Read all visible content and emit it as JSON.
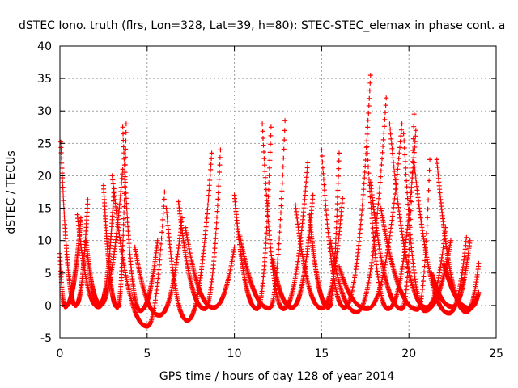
{
  "colors": {
    "series": "#ff0000",
    "axis": "#000000",
    "grid": "#a0a0a0",
    "background": "#ffffff"
  },
  "chart_data": {
    "type": "scatter",
    "marker": "plus",
    "title": "dSTEC Iono. truth (flrs, Lon=328, Lat=39, h=80): STEC-STEC_elemax in phase cont. a",
    "xlabel": "GPS time / hours of day 128 of year 2014",
    "ylabel": "dSTEC  / TECUs",
    "xlim": [
      0,
      25
    ],
    "ylim": [
      -5,
      40
    ],
    "xticks": [
      0,
      5,
      10,
      15,
      20,
      25
    ],
    "yticks": [
      -5,
      0,
      5,
      10,
      15,
      20,
      25,
      30,
      35,
      40
    ],
    "grid": true,
    "legend": "none",
    "series": [
      {
        "arcs": [
          {
            "start": 0.05,
            "min": 0.9,
            "end": 1.6,
            "peak_left": 25.2,
            "peak_right": 16.3,
            "floor": 0.0
          },
          {
            "start": 0.0,
            "min": 0.3,
            "end": 1.2,
            "peak_left": 8.0,
            "peak_right": 13.5,
            "floor": -0.2
          },
          {
            "start": 1.0,
            "min": 2.2,
            "end": 3.6,
            "peak_left": 14.0,
            "peak_right": 21.0,
            "floor": -0.2
          },
          {
            "start": 1.5,
            "min": 2.3,
            "end": 3.1,
            "peak_left": 10.0,
            "peak_right": 18.0,
            "floor": 0.3
          },
          {
            "start": 2.5,
            "min": 3.3,
            "end": 3.8,
            "peak_left": 18.5,
            "peak_right": 28.0,
            "floor": -0.3
          },
          {
            "start": 3.0,
            "min": 5.0,
            "end": 6.0,
            "peak_left": 20.0,
            "peak_right": 17.5,
            "floor": -3.2
          },
          {
            "start": 3.6,
            "min": 4.6,
            "end": 5.6,
            "peak_left": 27.5,
            "peak_right": 10.0,
            "floor": -0.8
          },
          {
            "start": 4.3,
            "min": 5.7,
            "end": 7.0,
            "peak_left": 9.0,
            "peak_right": 13.5,
            "floor": -1.5
          },
          {
            "start": 6.1,
            "min": 7.3,
            "end": 8.7,
            "peak_left": 15.0,
            "peak_right": 23.5,
            "floor": -2.3
          },
          {
            "start": 6.8,
            "min": 8.3,
            "end": 9.2,
            "peak_left": 16.0,
            "peak_right": 24.0,
            "floor": -0.5
          },
          {
            "start": 7.2,
            "min": 8.8,
            "end": 10.0,
            "peak_left": 12.0,
            "peak_right": 9.0,
            "floor": -0.3
          },
          {
            "start": 10.0,
            "min": 11.3,
            "end": 12.1,
            "peak_left": 17.0,
            "peak_right": 27.5,
            "floor": -0.5
          },
          {
            "start": 10.3,
            "min": 12.0,
            "end": 12.9,
            "peak_left": 11.0,
            "peak_right": 28.5,
            "floor": -0.4
          },
          {
            "start": 11.6,
            "min": 12.8,
            "end": 14.2,
            "peak_left": 28.0,
            "peak_right": 22.0,
            "floor": -0.5
          },
          {
            "start": 12.2,
            "min": 13.3,
            "end": 14.5,
            "peak_left": 7.0,
            "peak_right": 17.0,
            "floor": -0.3
          },
          {
            "start": 13.5,
            "min": 15.0,
            "end": 16.2,
            "peak_left": 15.5,
            "peak_right": 16.5,
            "floor": -0.4
          },
          {
            "start": 14.3,
            "min": 15.4,
            "end": 16.0,
            "peak_left": 14.0,
            "peak_right": 23.5,
            "floor": -0.3
          },
          {
            "start": 15.0,
            "min": 16.3,
            "end": 17.8,
            "peak_left": 24.0,
            "peak_right": 35.5,
            "floor": -0.3
          },
          {
            "start": 15.5,
            "min": 17.0,
            "end": 18.7,
            "peak_left": 10.0,
            "peak_right": 32.0,
            "floor": -1.0
          },
          {
            "start": 16.0,
            "min": 17.6,
            "end": 19.6,
            "peak_left": 6.0,
            "peak_right": 28.0,
            "floor": -0.5
          },
          {
            "start": 17.8,
            "min": 19.6,
            "end": 20.3,
            "peak_left": 19.0,
            "peak_right": 29.5,
            "floor": -0.5
          },
          {
            "start": 17.6,
            "min": 18.8,
            "end": 20.4,
            "peak_left": 24.5,
            "peak_right": 27.0,
            "floor": -0.5
          },
          {
            "start": 18.4,
            "min": 20.5,
            "end": 21.2,
            "peak_left": 15.0,
            "peak_right": 22.5,
            "floor": -0.6
          },
          {
            "start": 18.9,
            "min": 21.0,
            "end": 22.1,
            "peak_left": 28.0,
            "peak_right": 12.0,
            "floor": -0.3
          },
          {
            "start": 19.7,
            "min": 20.9,
            "end": 22.4,
            "peak_left": 26.5,
            "peak_right": 10.0,
            "floor": -0.8
          },
          {
            "start": 20.3,
            "min": 22.3,
            "end": 23.3,
            "peak_left": 22.0,
            "peak_right": 10.5,
            "floor": -1.2
          },
          {
            "start": 21.6,
            "min": 23.3,
            "end": 24.0,
            "peak_left": 22.5,
            "peak_right": 6.5,
            "floor": -1.0
          },
          {
            "start": 22.0,
            "min": 23.5,
            "end": 24.0,
            "peak_left": 6.5,
            "peak_right": 2.0,
            "floor": -0.4
          },
          {
            "start": 21.3,
            "min": 22.5,
            "end": 23.5,
            "peak_left": 5.0,
            "peak_right": 10.0,
            "floor": -0.2
          }
        ]
      }
    ]
  }
}
